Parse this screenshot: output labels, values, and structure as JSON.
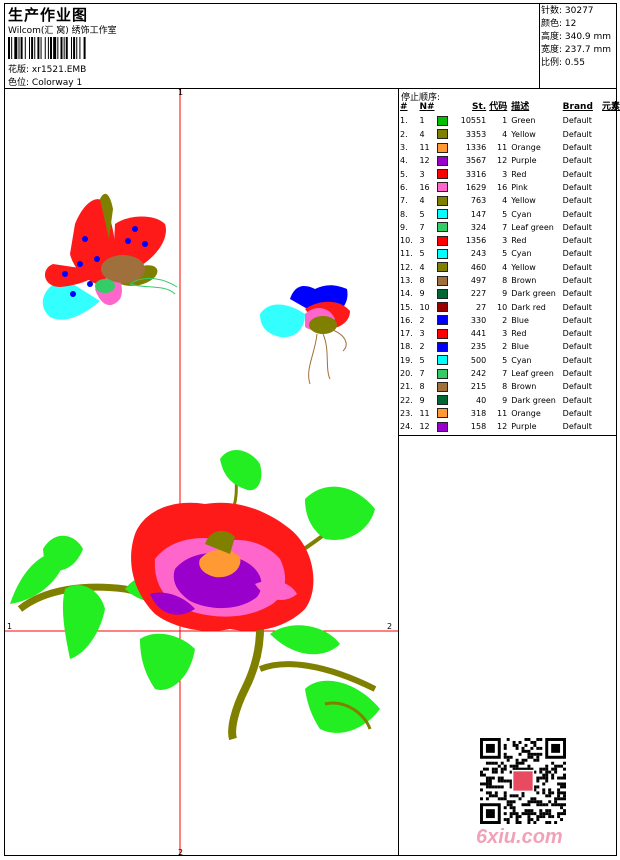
{
  "header": {
    "title": "生产作业图",
    "studio": "Wilcom(汇 窝) 绣饰工作室",
    "pattern_label": "花版:",
    "pattern_value": "xr1521.EMB",
    "color_label": "色位:",
    "color_value": "Colorway 1"
  },
  "specs": {
    "stitches": "针数: 30277",
    "colors": "颜色: 12",
    "height": "高度: 340.9 mm",
    "width": "宽度: 237.7 mm",
    "scale": "比例: 0.55"
  },
  "stop_sequence": {
    "title": "停止顺序:",
    "headers": [
      "#",
      "N#",
      "St.",
      "代码",
      "描述",
      "Brand",
      "元素"
    ],
    "rows": [
      {
        "idx": "1.",
        "n": "1",
        "color": "#00c000",
        "st": "10551",
        "code": "1",
        "desc": "Green",
        "brand": "Default"
      },
      {
        "idx": "2.",
        "n": "4",
        "color": "#808000",
        "st": "3353",
        "code": "4",
        "desc": "Yellow",
        "brand": "Default"
      },
      {
        "idx": "3.",
        "n": "11",
        "color": "#ff9933",
        "st": "1336",
        "code": "11",
        "desc": "Orange",
        "brand": "Default"
      },
      {
        "idx": "4.",
        "n": "12",
        "color": "#9900cc",
        "st": "3567",
        "code": "12",
        "desc": "Purple",
        "brand": "Default"
      },
      {
        "idx": "5.",
        "n": "3",
        "color": "#ff0000",
        "st": "3316",
        "code": "3",
        "desc": "Red",
        "brand": "Default"
      },
      {
        "idx": "6.",
        "n": "16",
        "color": "#ff66cc",
        "st": "1629",
        "code": "16",
        "desc": "Pink",
        "brand": "Default"
      },
      {
        "idx": "7.",
        "n": "4",
        "color": "#808000",
        "st": "763",
        "code": "4",
        "desc": "Yellow",
        "brand": "Default"
      },
      {
        "idx": "8.",
        "n": "5",
        "color": "#00ffff",
        "st": "147",
        "code": "5",
        "desc": "Cyan",
        "brand": "Default"
      },
      {
        "idx": "9.",
        "n": "7",
        "color": "#33cc66",
        "st": "324",
        "code": "7",
        "desc": "Leaf green",
        "brand": "Default"
      },
      {
        "idx": "10.",
        "n": "3",
        "color": "#ff0000",
        "st": "1356",
        "code": "3",
        "desc": "Red",
        "brand": "Default"
      },
      {
        "idx": "11.",
        "n": "5",
        "color": "#00ffff",
        "st": "243",
        "code": "5",
        "desc": "Cyan",
        "brand": "Default"
      },
      {
        "idx": "12.",
        "n": "4",
        "color": "#808000",
        "st": "460",
        "code": "4",
        "desc": "Yellow",
        "brand": "Default"
      },
      {
        "idx": "13.",
        "n": "8",
        "color": "#a0703c",
        "st": "497",
        "code": "8",
        "desc": "Brown",
        "brand": "Default"
      },
      {
        "idx": "14.",
        "n": "9",
        "color": "#006633",
        "st": "227",
        "code": "9",
        "desc": "Dark green",
        "brand": "Default"
      },
      {
        "idx": "15.",
        "n": "10",
        "color": "#990000",
        "st": "27",
        "code": "10",
        "desc": "Dark red",
        "brand": "Default"
      },
      {
        "idx": "16.",
        "n": "2",
        "color": "#0000ff",
        "st": "330",
        "code": "2",
        "desc": "Blue",
        "brand": "Default"
      },
      {
        "idx": "17.",
        "n": "3",
        "color": "#ff0000",
        "st": "441",
        "code": "3",
        "desc": "Red",
        "brand": "Default"
      },
      {
        "idx": "18.",
        "n": "2",
        "color": "#0000ff",
        "st": "235",
        "code": "2",
        "desc": "Blue",
        "brand": "Default"
      },
      {
        "idx": "19.",
        "n": "5",
        "color": "#00ffff",
        "st": "500",
        "code": "5",
        "desc": "Cyan",
        "brand": "Default"
      },
      {
        "idx": "20.",
        "n": "7",
        "color": "#33cc66",
        "st": "242",
        "code": "7",
        "desc": "Leaf green",
        "brand": "Default"
      },
      {
        "idx": "21.",
        "n": "8",
        "color": "#a0703c",
        "st": "215",
        "code": "8",
        "desc": "Brown",
        "brand": "Default"
      },
      {
        "idx": "22.",
        "n": "9",
        "color": "#006633",
        "st": "40",
        "code": "9",
        "desc": "Dark green",
        "brand": "Default"
      },
      {
        "idx": "23.",
        "n": "11",
        "color": "#ff9933",
        "st": "318",
        "code": "11",
        "desc": "Orange",
        "brand": "Default"
      },
      {
        "idx": "24.",
        "n": "12",
        "color": "#9900cc",
        "st": "158",
        "code": "12",
        "desc": "Purple",
        "brand": "Default"
      }
    ]
  },
  "axes": {
    "top": "1",
    "bottom": "2",
    "left": "1",
    "right": "2"
  },
  "watermark": "6xiu.com",
  "colors": {
    "axis": "#ff0000",
    "green": "#22ee22",
    "olive": "#808000",
    "red": "#ff1a1a",
    "pink": "#ff66cc",
    "purple": "#9900cc",
    "cyan": "#33ffff",
    "blue": "#0000ff",
    "orange": "#ff9933",
    "watermark": "#f0a3b8"
  }
}
